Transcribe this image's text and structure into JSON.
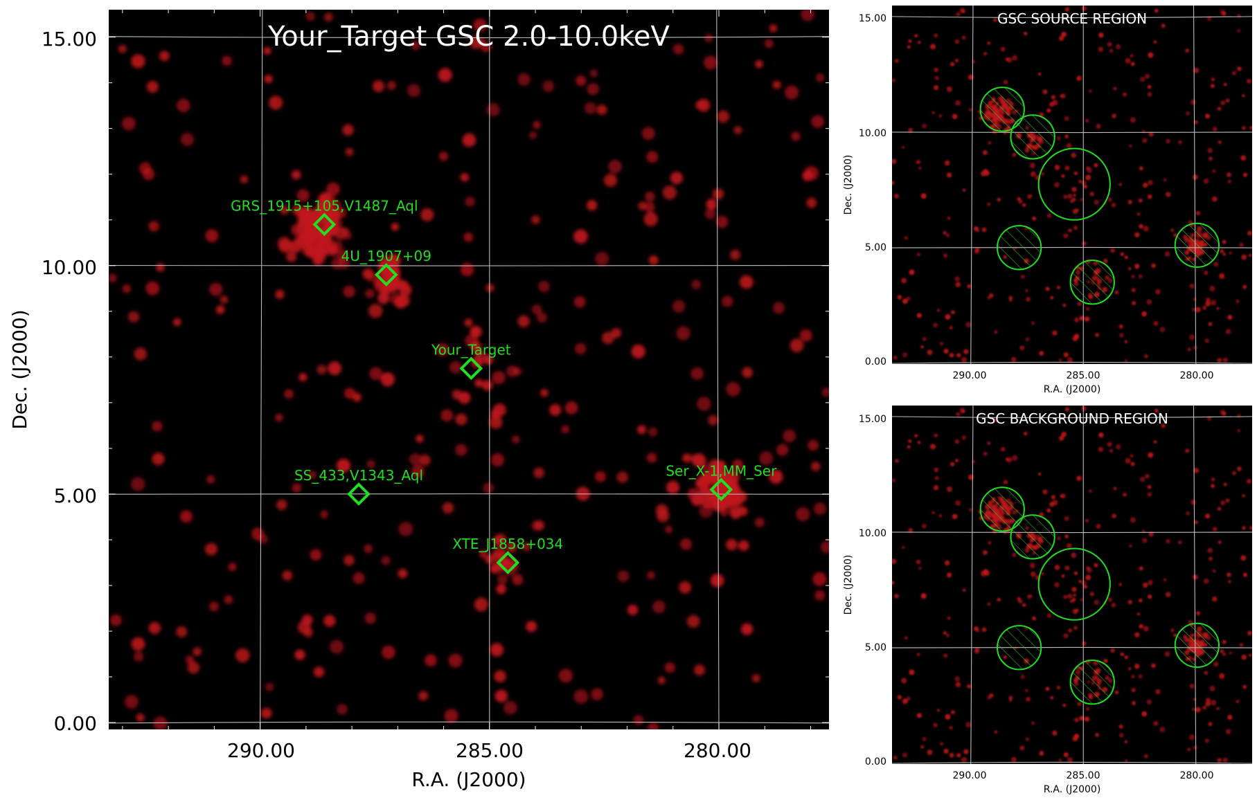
{
  "colors": {
    "background": "#000000",
    "grid": "#bdbdbd",
    "marker": "#22dd22",
    "label": "#22dd22",
    "source_glow": "#c0161b",
    "title": "#ffffff"
  },
  "chart_data": [
    {
      "type": "scatter",
      "title": "Your_Target GSC 2.0-10.0keV",
      "xlabel": "R.A. (J2000)",
      "ylabel": "Dec. (J2000)",
      "xlim": [
        293.3,
        277.6
      ],
      "ylim": [
        -0.15,
        15.6
      ],
      "xticks": [
        290,
        285,
        280
      ],
      "xtick_labels": [
        "290.00",
        "285.00",
        "280.00"
      ],
      "yticks": [
        0,
        5,
        10,
        15
      ],
      "ytick_labels": [
        "0.00",
        "5.00",
        "10.00",
        "15.00"
      ],
      "grid": true,
      "sources": [
        {
          "name": "GRS_1915+105,V1487_Aql",
          "ra": 288.6,
          "dec": 10.9
        },
        {
          "name": "4U_1907+09",
          "ra": 287.25,
          "dec": 9.8
        },
        {
          "name": "Your_Target",
          "ra": 285.4,
          "dec": 7.75
        },
        {
          "name": "SS_433,V1343_Aql",
          "ra": 287.85,
          "dec": 5.0
        },
        {
          "name": "Ser_X-1,MM_Ser",
          "ra": 279.95,
          "dec": 5.1
        },
        {
          "name": "XTE_J1858+034",
          "ra": 284.6,
          "dec": 3.5
        }
      ]
    },
    {
      "type": "scatter",
      "title": "GSC SOURCE REGION",
      "xlabel": "R.A. (J2000)",
      "ylabel": "Dec. (J2000)",
      "xlim": [
        293.5,
        277.5
      ],
      "ylim": [
        -0.05,
        15.5
      ],
      "xtick_labels": [
        "290.00",
        "285.00",
        "280.00"
      ],
      "ytick_labels": [
        "0.00",
        "5.00",
        "10.00",
        "15.00"
      ],
      "grid": true,
      "regions": [
        {
          "kind": "source",
          "ra": 285.4,
          "dec": 7.75,
          "radius": 1.55
        },
        {
          "kind": "excluded",
          "ra": 288.6,
          "dec": 11.0,
          "radius": 0.95
        },
        {
          "kind": "excluded",
          "ra": 287.25,
          "dec": 9.8,
          "radius": 0.95
        },
        {
          "kind": "excluded",
          "ra": 287.85,
          "dec": 5.0,
          "radius": 0.95
        },
        {
          "kind": "excluded",
          "ra": 279.95,
          "dec": 5.1,
          "radius": 0.95
        },
        {
          "kind": "excluded",
          "ra": 284.6,
          "dec": 3.5,
          "radius": 0.95
        }
      ]
    },
    {
      "type": "scatter",
      "title": "GSC BACKGROUND REGION",
      "xlabel": "R.A. (J2000)",
      "ylabel": "Dec. (J2000)",
      "xlim": [
        293.5,
        277.5
      ],
      "ylim": [
        -0.05,
        15.5
      ],
      "xtick_labels": [
        "290.00",
        "285.00",
        "280.00"
      ],
      "ytick_labels": [
        "0.00",
        "5.00",
        "10.00",
        "15.00"
      ],
      "grid": true,
      "regions": [
        {
          "kind": "background",
          "ra": 285.4,
          "dec": 7.75,
          "radius": 1.55
        },
        {
          "kind": "excluded",
          "ra": 288.6,
          "dec": 11.0,
          "radius": 0.95
        },
        {
          "kind": "excluded",
          "ra": 287.25,
          "dec": 9.8,
          "radius": 0.95
        },
        {
          "kind": "excluded",
          "ra": 287.85,
          "dec": 5.0,
          "radius": 0.95
        },
        {
          "kind": "excluded",
          "ra": 279.95,
          "dec": 5.1,
          "radius": 0.95
        },
        {
          "kind": "excluded",
          "ra": 284.6,
          "dec": 3.5,
          "radius": 0.95
        }
      ]
    }
  ]
}
